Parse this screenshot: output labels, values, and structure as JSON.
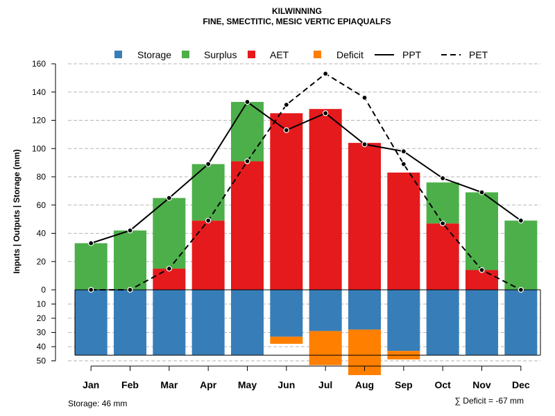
{
  "chart_data": {
    "type": "bar",
    "title": "KILWINNING",
    "subtitle": "FINE, SMECTITIC, MESIC VERTIC EPIAQUALFS",
    "ylabel": "Inputs | Outputs | Storage    (mm)",
    "ylim_top": [
      0,
      160
    ],
    "ylim_bottom": [
      0,
      50
    ],
    "y_ticks_top": [
      "0",
      "20",
      "40",
      "60",
      "80",
      "100",
      "120",
      "140",
      "160"
    ],
    "y_ticks_bottom": [
      "10",
      "20",
      "30",
      "40",
      "50"
    ],
    "categories": [
      "Jan",
      "Feb",
      "Mar",
      "Apr",
      "May",
      "Jun",
      "Jul",
      "Aug",
      "Sep",
      "Oct",
      "Nov",
      "Dec"
    ],
    "series": [
      {
        "name": "Storage",
        "color": "#377EB8",
        "values": [
          46,
          46,
          46,
          46,
          46,
          33,
          29,
          28,
          43,
          46,
          46,
          46
        ]
      },
      {
        "name": "Surplus",
        "color": "#4DAF4A",
        "values": [
          33,
          42,
          50,
          40,
          42,
          0,
          0,
          0,
          0,
          29,
          55,
          49
        ]
      },
      {
        "name": "AET",
        "color": "#E41A1C",
        "values": [
          0,
          0,
          15,
          49,
          91,
          125,
          128,
          104,
          83,
          47,
          14,
          0
        ]
      },
      {
        "name": "Deficit",
        "color": "#FF7F00",
        "values": [
          0,
          0,
          0,
          0,
          0,
          5,
          24,
          32,
          6,
          0,
          0,
          0
        ]
      },
      {
        "name": "PPT",
        "style": "solid",
        "color": "#000000",
        "values": [
          33,
          42,
          65,
          89,
          133,
          113,
          125,
          103,
          98,
          79,
          69,
          49
        ]
      },
      {
        "name": "PET",
        "style": "dashed",
        "color": "#000000",
        "values": [
          0,
          0,
          15,
          49,
          91,
          131,
          153,
          136,
          89,
          47,
          14,
          0
        ]
      }
    ],
    "legend_position": "top",
    "grid": true,
    "storage_capacity": 46,
    "storage_note": "Storage: 46 mm",
    "deficit_note": "∑ Deficit = -67 mm"
  }
}
